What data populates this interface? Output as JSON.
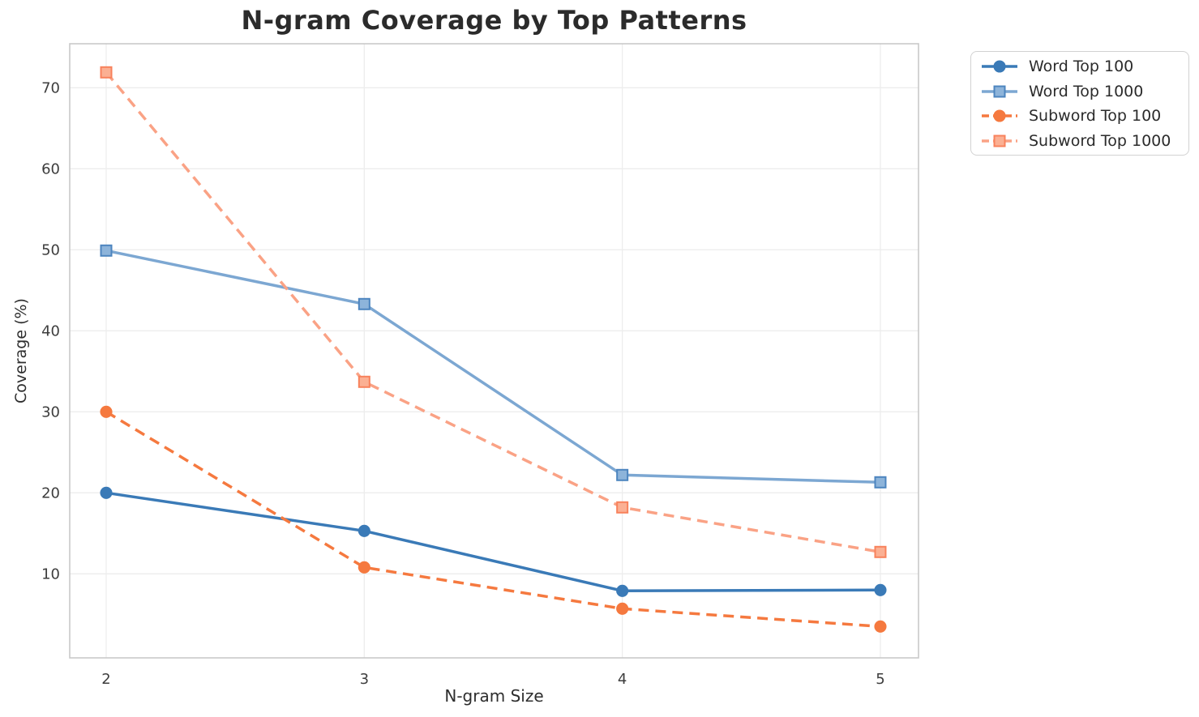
{
  "chart_data": {
    "type": "line",
    "title": "N-gram Coverage by Top Patterns",
    "xlabel": "N-gram Size",
    "ylabel": "Coverage (%)",
    "x": [
      2,
      3,
      4,
      5
    ],
    "x_tick_labels": [
      "2",
      "3",
      "4",
      "5"
    ],
    "y_ticks": [
      10,
      20,
      30,
      40,
      50,
      60,
      70
    ],
    "xlim": [
      1.86,
      5.15
    ],
    "ylim": [
      -0.4,
      75.4
    ],
    "grid": true,
    "legend_position": "upper right outside plot",
    "series": [
      {
        "name": "Word Top 100",
        "values": [
          20.0,
          15.3,
          7.9,
          8.0
        ],
        "color": "#3a7ab7",
        "line_style": "solid",
        "marker": "circle",
        "marker_fill": "#3a7ab7",
        "marker_edge": "#3a7ab7"
      },
      {
        "name": "Word Top 1000",
        "values": [
          49.9,
          43.3,
          22.2,
          21.3
        ],
        "color": "#7ca7d2",
        "line_style": "solid",
        "marker": "square",
        "marker_fill": "#8db4da",
        "marker_edge": "#4d85bf"
      },
      {
        "name": "Subword Top 100",
        "values": [
          30.0,
          10.8,
          5.7,
          3.5
        ],
        "color": "#f5793f",
        "line_style": "dashed",
        "marker": "circle",
        "marker_fill": "#f5793f",
        "marker_edge": "#f5793f"
      },
      {
        "name": "Subword Top 1000",
        "values": [
          71.9,
          33.7,
          18.2,
          12.7
        ],
        "color": "#faa285",
        "line_style": "dashed",
        "marker": "square",
        "marker_fill": "#fbb093",
        "marker_edge": "#f8825c"
      }
    ]
  }
}
